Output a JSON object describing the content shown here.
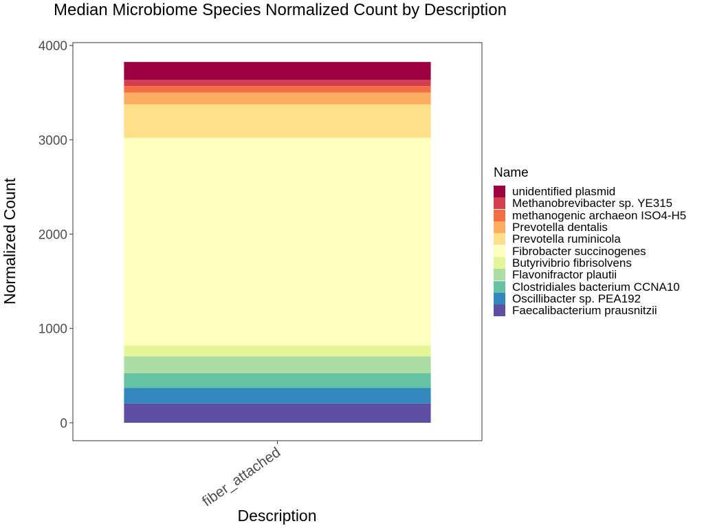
{
  "chart_data": {
    "type": "bar",
    "stacked": true,
    "title": "Median Microbiome Species Normalized Count by Description",
    "xlabel": "Description",
    "ylabel": "Normalized Count",
    "categories": [
      "fiber_attached"
    ],
    "ylim": [
      -190,
      4030
    ],
    "yticks": [
      0,
      1000,
      2000,
      3000,
      4000
    ],
    "grid": false,
    "legend_position": "right",
    "legend_title": "Name",
    "series": [
      {
        "name": "unidentified plasmid",
        "values": [
          190
        ],
        "color": "#9E0142"
      },
      {
        "name": "Methanobrevibacter sp. YE315",
        "values": [
          65
        ],
        "color": "#D53E4F"
      },
      {
        "name": "methanogenic archaeon ISO4-H5",
        "values": [
          70
        ],
        "color": "#F46D43"
      },
      {
        "name": "Prevotella dentalis",
        "values": [
          125
        ],
        "color": "#FDAE61"
      },
      {
        "name": "Prevotella ruminicola",
        "values": [
          355
        ],
        "color": "#FEE08B"
      },
      {
        "name": "Fibrobacter succinogenes",
        "values": [
          2200
        ],
        "color": "#FFFFBF"
      },
      {
        "name": "Butyrivibrio fibrisolvens",
        "values": [
          115
        ],
        "color": "#E6F598"
      },
      {
        "name": "Flavonifractor plautii",
        "values": [
          180
        ],
        "color": "#ABDDA4"
      },
      {
        "name": "Clostridiales bacterium CCNA10",
        "values": [
          155
        ],
        "color": "#66C2A5"
      },
      {
        "name": "Oscillibacter sp. PEA192",
        "values": [
          165
        ],
        "color": "#3288BD"
      },
      {
        "name": "Faecalibacterium prausnitzii",
        "values": [
          205
        ],
        "color": "#5E4FA2"
      }
    ]
  }
}
